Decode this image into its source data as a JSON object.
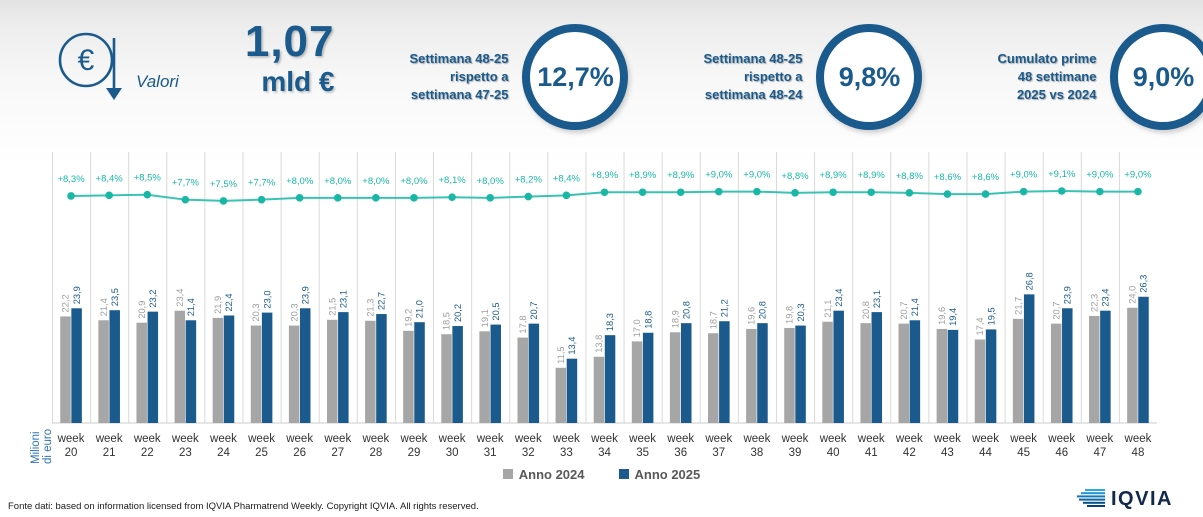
{
  "header": {
    "euro_symbol": "€",
    "valori_label": "Valori",
    "value_big": "1,07",
    "value_unit": "mld €",
    "kpis": [
      {
        "line1": "Settimana 48-25",
        "line2": "rispetto a",
        "line3": "settimana 47-25",
        "value": "12,7%"
      },
      {
        "line1": "Settimana 48-25",
        "line2": "rispetto a",
        "line3": "settimana 48-24",
        "value": "9,8%"
      },
      {
        "line1": "Cumulato prime",
        "line2": "48 settimane",
        "line3": "2025 vs 2024",
        "value": "9,0%"
      }
    ]
  },
  "chart_data": {
    "type": "bar",
    "ylabel": "Milioni di euro",
    "x_label_word": "week",
    "weeks": [
      20,
      21,
      22,
      23,
      24,
      25,
      26,
      27,
      28,
      29,
      30,
      31,
      32,
      33,
      34,
      35,
      36,
      37,
      38,
      39,
      40,
      41,
      42,
      43,
      44,
      45,
      46,
      47,
      48
    ],
    "series": [
      {
        "name": "Anno 2024",
        "color": "#a6a6a6",
        "values": [
          22.2,
          21.4,
          20.9,
          23.4,
          21.9,
          20.3,
          20.3,
          21.5,
          21.3,
          19.2,
          18.5,
          19.1,
          17.8,
          11.5,
          13.8,
          17.0,
          18.9,
          18.7,
          19.6,
          19.8,
          21.1,
          20.8,
          20.7,
          19.6,
          17.4,
          21.7,
          20.7,
          22.3,
          24.0
        ]
      },
      {
        "name": "Anno 2025",
        "color": "#1a5a8c",
        "values": [
          23.9,
          23.5,
          23.2,
          21.4,
          22.4,
          23.0,
          23.9,
          23.1,
          22.7,
          21.0,
          20.2,
          20.5,
          20.7,
          13.4,
          18.3,
          18.8,
          20.8,
          21.2,
          20.8,
          20.3,
          23.4,
          23.1,
          21.4,
          19.4,
          19.5,
          26.8,
          23.9,
          23.4,
          26.3
        ]
      }
    ],
    "growth_line": {
      "color": "#18b7a6",
      "values_pct": [
        8.3,
        8.4,
        8.5,
        7.7,
        7.5,
        7.7,
        8.0,
        8.0,
        8.0,
        8.0,
        8.1,
        8.0,
        8.2,
        8.4,
        8.9,
        8.9,
        8.9,
        9.0,
        9.0,
        8.8,
        8.9,
        8.9,
        8.8,
        8.6,
        8.6,
        9.0,
        9.1,
        9.0,
        9.0
      ]
    },
    "ylim": [
      0,
      30
    ],
    "grid": "vertical",
    "legend_position": "bottom"
  },
  "legend": {
    "items": [
      {
        "label": "Anno 2024",
        "color": "#a6a6a6"
      },
      {
        "label": "Anno 2025",
        "color": "#1a5a8c"
      }
    ]
  },
  "footer": {
    "source": "Fonte dati: based on information licensed from IQVIA Pharmatrend Weekly. Copyright IQVIA. All rights reserved.",
    "logo_text": "IQVIA"
  }
}
